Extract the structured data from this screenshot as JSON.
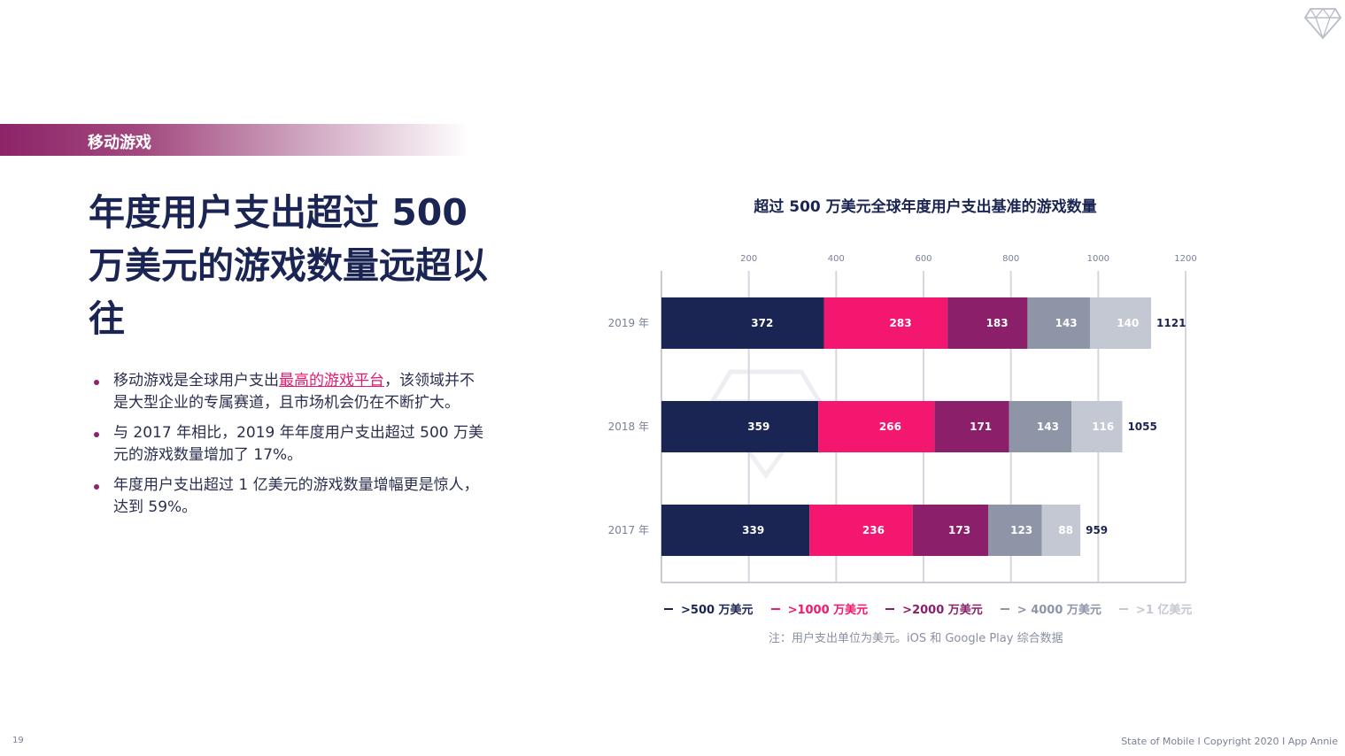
{
  "section": {
    "label": "移动游戏"
  },
  "headline": "年度用户支出超过 500 万美元的游戏数量远超以往",
  "bullets": [
    {
      "pre": "移动游戏是全球用户支出",
      "link": "最高的游戏平台",
      "post": "，该领域并不是大型企业的专属赛道，且市场机会仍在不断扩大。"
    },
    {
      "pre": "与 2017 年相比，2019 年年度用户支出超过 500 万美元的游戏数量增加了 17%。",
      "link": "",
      "post": ""
    },
    {
      "pre": "年度用户支出超过 1 亿美元的游戏数量增幅更是惊人，达到 59%。",
      "link": "",
      "post": ""
    }
  ],
  "chart_data": {
    "type": "bar",
    "orientation": "horizontal",
    "stacked": true,
    "title": "超过 500 万美元全球年度用户支出基准的游戏数量",
    "categories": [
      "2019 年",
      "2018 年",
      "2017 年"
    ],
    "xticks": [
      200,
      400,
      600,
      800,
      1000,
      1200
    ],
    "xlim": [
      0,
      1200
    ],
    "grid": true,
    "series": [
      {
        "name": ">500 万美元",
        "color": "#1b2553",
        "values": [
          372,
          359,
          339
        ]
      },
      {
        "name": ">1000 万美元",
        "color": "#f4176f",
        "values": [
          283,
          266,
          236
        ]
      },
      {
        "name": ">2000 万美元",
        "color": "#8b1f6a",
        "values": [
          183,
          171,
          173
        ]
      },
      {
        "name": "> 4000 万美元",
        "color": "#8d95a6",
        "values": [
          143,
          143,
          123
        ]
      },
      {
        "name": ">1 亿美元",
        "color": "#c4c8d3",
        "values": [
          140,
          116,
          88
        ]
      }
    ],
    "totals": [
      1121,
      1055,
      959
    ],
    "legend_position": "bottom",
    "note": "注：用户支出单位为美元。iOS 和 Google Play 综合数据"
  },
  "footer": {
    "page": "19",
    "text": "State of Mobile  I  Copyright 2020  I  App Annie"
  }
}
